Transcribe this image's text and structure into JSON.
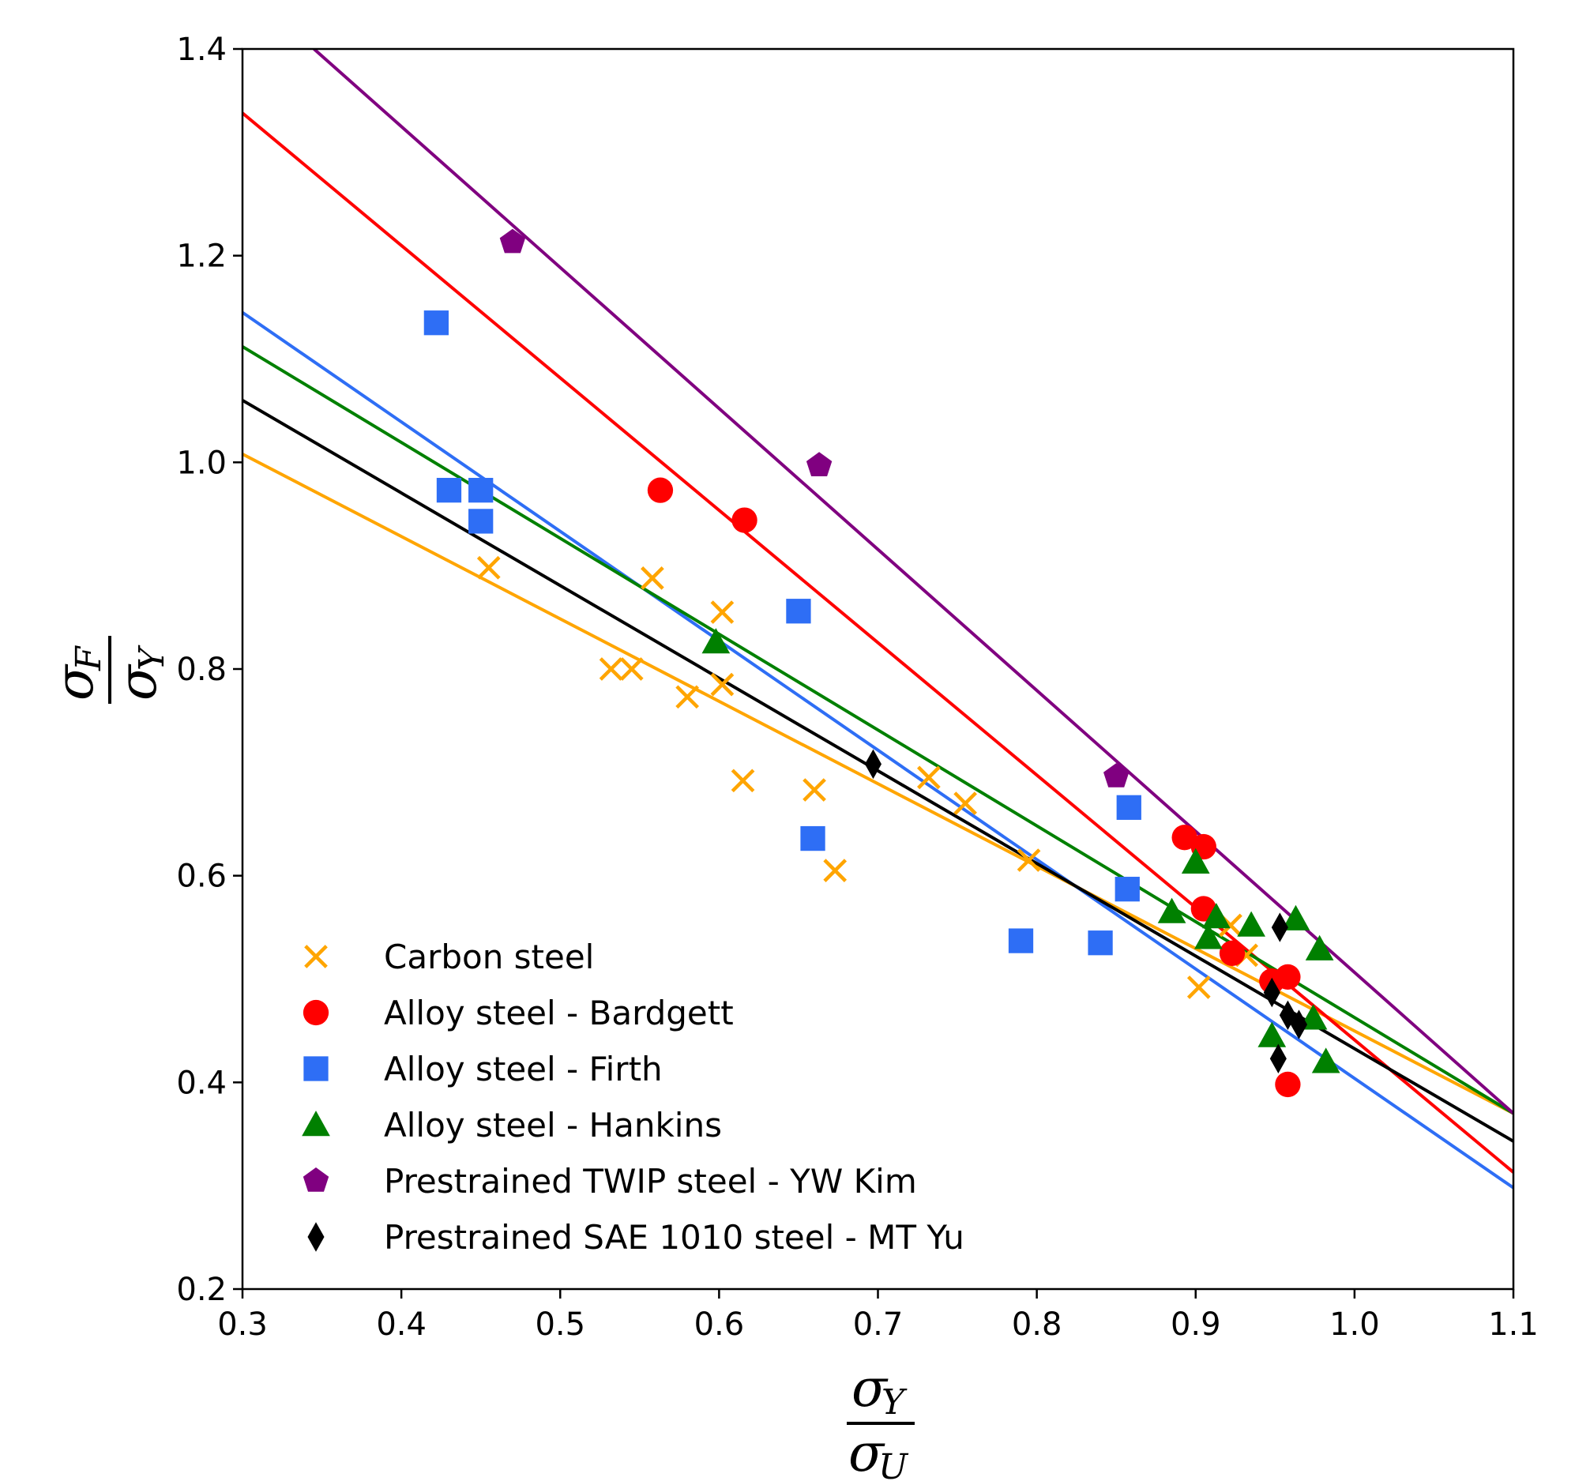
{
  "chart_data": {
    "type": "scatter",
    "title": "",
    "xlabel": {
      "symbol": "σ",
      "numerator_sub": "Y",
      "denominator_sub": "U"
    },
    "ylabel": {
      "symbol": "σ",
      "numerator_sub": "F",
      "denominator_sub": "Y"
    },
    "xlim": [
      0.3,
      1.1
    ],
    "ylim": [
      0.2,
      1.4
    ],
    "xticks": [
      "0.3",
      "0.4",
      "0.5",
      "0.6",
      "0.7",
      "0.8",
      "0.9",
      "1.0",
      "1.1"
    ],
    "yticks": [
      "0.2",
      "0.4",
      "0.6",
      "0.8",
      "1.0",
      "1.2",
      "1.4"
    ],
    "grid": false,
    "legend_position": "bottom-left",
    "series": [
      {
        "name": "Carbon steel",
        "marker": "x",
        "color": "#FFA500",
        "points": [
          [
            0.455,
            0.898
          ],
          [
            0.532,
            0.8
          ],
          [
            0.545,
            0.8
          ],
          [
            0.558,
            0.888
          ],
          [
            0.58,
            0.773
          ],
          [
            0.602,
            0.855
          ],
          [
            0.602,
            0.785
          ],
          [
            0.615,
            0.692
          ],
          [
            0.66,
            0.683
          ],
          [
            0.673,
            0.605
          ],
          [
            0.732,
            0.695
          ],
          [
            0.755,
            0.67
          ],
          [
            0.795,
            0.615
          ],
          [
            0.902,
            0.492
          ],
          [
            0.922,
            0.552
          ],
          [
            0.932,
            0.523
          ]
        ],
        "fit": [
          [
            0.3,
            1.008
          ],
          [
            1.1,
            0.37
          ]
        ]
      },
      {
        "name": "Alloy steel - Bardgett",
        "marker": "circle",
        "color": "#FF0000",
        "points": [
          [
            0.563,
            0.973
          ],
          [
            0.616,
            0.944
          ],
          [
            0.893,
            0.637
          ],
          [
            0.905,
            0.628
          ],
          [
            0.905,
            0.568
          ],
          [
            0.923,
            0.525
          ],
          [
            0.948,
            0.498
          ],
          [
            0.958,
            0.502
          ],
          [
            0.958,
            0.398
          ]
        ],
        "fit": [
          [
            0.3,
            1.338
          ],
          [
            1.1,
            0.313
          ]
        ]
      },
      {
        "name": "Alloy steel - Firth",
        "marker": "square",
        "color": "#2E6EF5",
        "points": [
          [
            0.422,
            1.135
          ],
          [
            0.43,
            0.973
          ],
          [
            0.45,
            0.973
          ],
          [
            0.45,
            0.943
          ],
          [
            0.65,
            0.856
          ],
          [
            0.659,
            0.636
          ],
          [
            0.79,
            0.537
          ],
          [
            0.84,
            0.535
          ],
          [
            0.857,
            0.587
          ],
          [
            0.858,
            0.666
          ]
        ],
        "fit": [
          [
            0.3,
            1.145
          ],
          [
            1.1,
            0.298
          ]
        ]
      },
      {
        "name": "Alloy steel - Hankins",
        "marker": "triangle",
        "color": "#008000",
        "points": [
          [
            0.598,
            0.826
          ],
          [
            0.885,
            0.565
          ],
          [
            0.9,
            0.613
          ],
          [
            0.908,
            0.54
          ],
          [
            0.913,
            0.56
          ],
          [
            0.935,
            0.552
          ],
          [
            0.948,
            0.445
          ],
          [
            0.963,
            0.558
          ],
          [
            0.974,
            0.462
          ],
          [
            0.978,
            0.529
          ],
          [
            0.982,
            0.42
          ]
        ],
        "fit": [
          [
            0.3,
            1.112
          ],
          [
            1.1,
            0.37
          ]
        ]
      },
      {
        "name": "Prestrained TWIP steel - YW Kim",
        "marker": "pentagon",
        "color": "#800080",
        "points": [
          [
            0.47,
            1.213
          ],
          [
            0.663,
            0.997
          ],
          [
            0.85,
            0.696
          ]
        ],
        "fit": [
          [
            0.345,
            1.4
          ],
          [
            1.1,
            0.37
          ]
        ]
      },
      {
        "name": "Prestrained SAE 1010 steel - MT Yu",
        "marker": "diamond",
        "color": "#000000",
        "points": [
          [
            0.697,
            0.708
          ],
          [
            0.948,
            0.487
          ],
          [
            0.953,
            0.55
          ],
          [
            0.952,
            0.423
          ],
          [
            0.958,
            0.465
          ],
          [
            0.965,
            0.456
          ]
        ],
        "fit": [
          [
            0.3,
            1.06
          ],
          [
            1.1,
            0.343
          ]
        ]
      }
    ]
  }
}
